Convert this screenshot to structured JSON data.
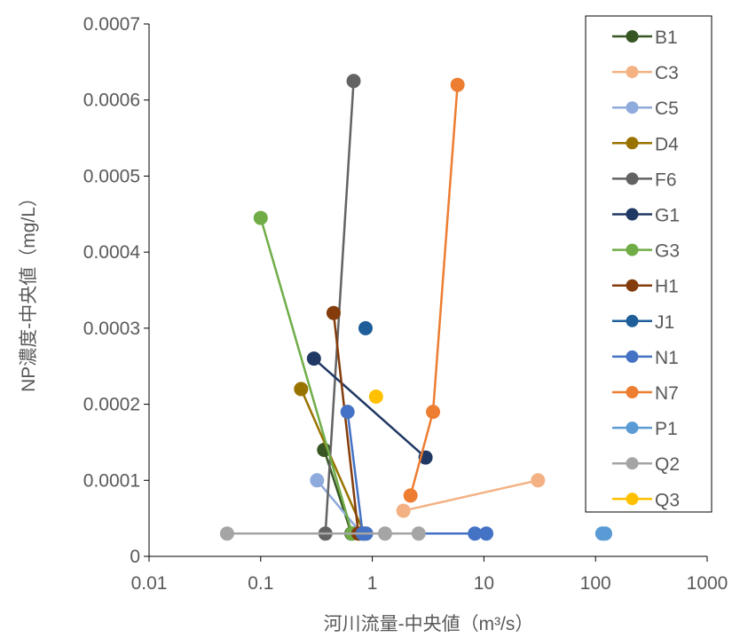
{
  "chart_data": {
    "type": "scatter",
    "title": "",
    "xlabel": "河川流量-中央値（m³/s）",
    "ylabel": "NP濃度-中央値（mg/L）",
    "x_scale": "log",
    "xlim": [
      0.01,
      1000
    ],
    "ylim": [
      0,
      0.0007
    ],
    "x_ticks": [
      0.01,
      0.1,
      1,
      10,
      100,
      1000
    ],
    "x_tick_labels": [
      "0.01",
      "0.1",
      "1",
      "10",
      "100",
      "1000"
    ],
    "y_ticks": [
      0,
      0.0001,
      0.0002,
      0.0003,
      0.0004,
      0.0005,
      0.0006,
      0.0007
    ],
    "y_tick_labels": [
      "0",
      "0.0001",
      "0.0002",
      "0.0003",
      "0.0004",
      "0.0005",
      "0.0006",
      "0.0007"
    ],
    "grid": false,
    "legend_position": "right",
    "series": [
      {
        "name": "B1",
        "color": "#375623",
        "points": [
          [
            0.37,
            0.00014
          ],
          [
            0.65,
            3e-05
          ]
        ]
      },
      {
        "name": "C3",
        "color": "#F4B183",
        "points": [
          [
            30.5,
            0.0001
          ],
          [
            1.9,
            6e-05
          ]
        ]
      },
      {
        "name": "C5",
        "color": "#8FAADC",
        "points": [
          [
            0.32,
            0.0001
          ],
          [
            0.8,
            3e-05
          ]
        ]
      },
      {
        "name": "D4",
        "color": "#997300",
        "points": [
          [
            0.23,
            0.00022
          ],
          [
            0.85,
            3e-05
          ]
        ]
      },
      {
        "name": "F6",
        "color": "#636363",
        "points": [
          [
            0.68,
            0.000625
          ],
          [
            0.38,
            3e-05
          ]
        ]
      },
      {
        "name": "G1",
        "color": "#203864",
        "points": [
          [
            0.3,
            0.00026
          ],
          [
            3.0,
            0.00013
          ]
        ]
      },
      {
        "name": "G3",
        "color": "#70AD47",
        "points": [
          [
            0.1,
            0.000445
          ],
          [
            0.66,
            3e-05
          ]
        ]
      },
      {
        "name": "H1",
        "color": "#843C0C",
        "points": [
          [
            0.45,
            0.00032
          ],
          [
            0.75,
            3e-05
          ]
        ]
      },
      {
        "name": "J1",
        "color": "#1F5E99",
        "points": [
          [
            0.87,
            0.0003
          ]
        ]
      },
      {
        "name": "N1",
        "color": "#4472C4",
        "points": [
          [
            0.6,
            0.00019
          ],
          [
            0.82,
            3e-05
          ],
          [
            0.88,
            3e-05
          ],
          [
            8.3,
            3e-05
          ],
          [
            10.5,
            3e-05
          ]
        ]
      },
      {
        "name": "N7",
        "color": "#ED7D31",
        "points": [
          [
            5.8,
            0.00062
          ],
          [
            3.5,
            0.00019
          ],
          [
            2.2,
            8e-05
          ]
        ]
      },
      {
        "name": "P1",
        "color": "#5B9BD5",
        "points": [
          [
            115,
            3e-05
          ],
          [
            122,
            3e-05
          ]
        ]
      },
      {
        "name": "Q2",
        "color": "#A5A5A5",
        "points": [
          [
            0.05,
            3e-05
          ],
          [
            1.3,
            3e-05
          ],
          [
            2.6,
            3e-05
          ]
        ]
      },
      {
        "name": "Q3",
        "color": "#FFC000",
        "points": [
          [
            1.08,
            0.00021
          ]
        ]
      }
    ]
  }
}
